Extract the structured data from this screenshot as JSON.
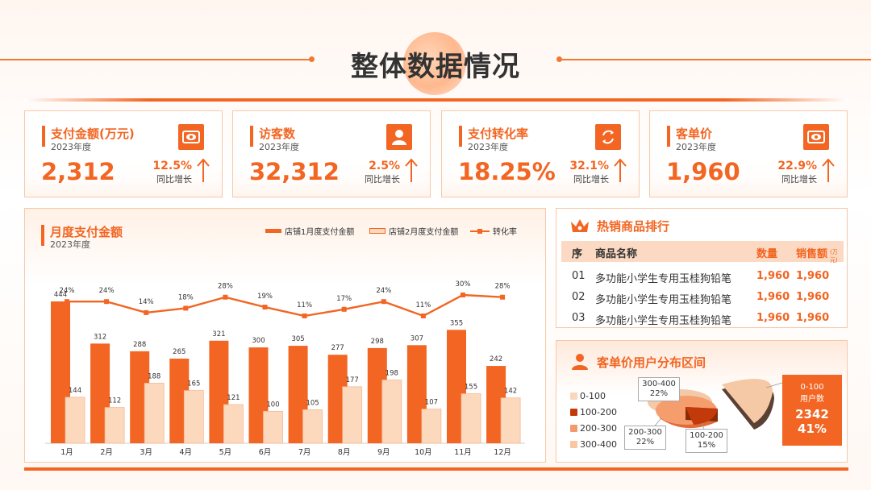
{
  "page": {
    "title": "整体数据情况"
  },
  "kpis": [
    {
      "label": "支付金额(万元)",
      "year": "2023年度",
      "value": "2,312",
      "pct": "12.5%",
      "pct_label": "同比增长",
      "icon": "eye-icon"
    },
    {
      "label": "访客数",
      "year": "2023年度",
      "value": "32,312",
      "pct": "2.5%",
      "pct_label": "同比增长",
      "icon": "user-icon"
    },
    {
      "label": "支付转化率",
      "year": "2023年度",
      "value": "18.25%",
      "pct": "32.1%",
      "pct_label": "同比增长",
      "icon": "exchange-icon"
    },
    {
      "label": "客单价",
      "year": "2023年度",
      "value": "1,960",
      "pct": "22.9%",
      "pct_label": "同比增长",
      "icon": "eye-icon"
    }
  ],
  "monthly": {
    "title": "月度支付金额",
    "year": "2023年度",
    "legend": [
      "店铺1月度支付金额",
      "店铺2月度支付金额",
      "转化率"
    ]
  },
  "chart_data": {
    "type": "bar",
    "categories": [
      "1月",
      "2月",
      "3月",
      "4月",
      "5月",
      "6月",
      "7月",
      "8月",
      "9月",
      "10月",
      "11月",
      "12月"
    ],
    "series": [
      {
        "name": "店铺1月度支付金额",
        "values": [
          444,
          312,
          288,
          265,
          321,
          300,
          305,
          277,
          298,
          307,
          355,
          242
        ]
      },
      {
        "name": "店铺2月度支付金额",
        "values": [
          144,
          112,
          188,
          165,
          121,
          100,
          105,
          177,
          198,
          107,
          155,
          142
        ]
      },
      {
        "name": "转化率",
        "type": "line",
        "values": [
          24,
          24,
          14,
          18,
          28,
          19,
          11,
          17,
          24,
          11,
          30,
          28
        ]
      }
    ],
    "rate_labels": [
      "24%",
      "24%",
      "14%",
      "18%",
      "28%",
      "19%",
      "11%",
      "17%",
      "24%",
      "11%",
      "30%",
      "28%"
    ],
    "title": "月度支付金额",
    "colors": {
      "store1": "#f26522",
      "store2": "#fcd9bd",
      "rate": "#f26522"
    }
  },
  "ranking": {
    "title": "热销商品排行",
    "headers": {
      "seq": "序",
      "name": "商品名称",
      "qty": "数量",
      "sales": "销售额",
      "sales_unit": "(万元)"
    },
    "rows": [
      {
        "seq": "01",
        "name": "多功能小学生专用玉桂狗铅笔",
        "qty": "1,960",
        "sales": "1,960"
      },
      {
        "seq": "02",
        "name": "多功能小学生专用玉桂狗铅笔",
        "qty": "1,960",
        "sales": "1,960"
      },
      {
        "seq": "03",
        "name": "多功能小学生专用玉桂狗铅笔",
        "qty": "1,960",
        "sales": "1,960"
      }
    ]
  },
  "distribution": {
    "title": "客单价用户分布区间",
    "legend": [
      "0-100",
      "100-200",
      "200-300",
      "300-400"
    ],
    "callouts": [
      {
        "range": "300-400",
        "pct": "22%"
      },
      {
        "range": "200-300",
        "pct": "22%"
      },
      {
        "range": "100-200",
        "pct": "15%"
      }
    ],
    "highlight": {
      "range": "0-100",
      "label": "用户数",
      "count": "2342",
      "pct": "41%"
    }
  }
}
